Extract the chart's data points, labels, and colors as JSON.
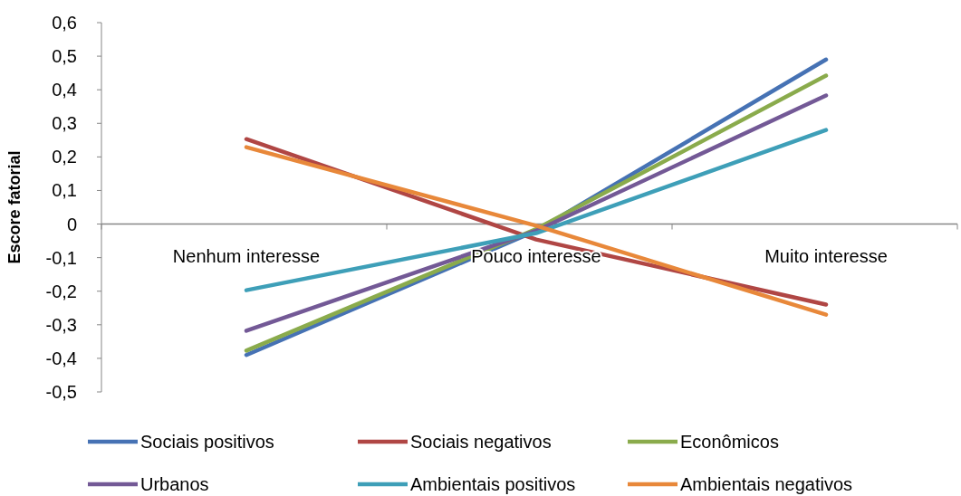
{
  "chart_data": {
    "type": "line",
    "ylabel": "Escore fatorial",
    "categories": [
      "Nenhum interesse",
      "Pouco interesse",
      "Muito interesse"
    ],
    "ylim": [
      -0.5,
      0.6
    ],
    "yticks": [
      {
        "value": -0.5,
        "label": "-0,5"
      },
      {
        "value": -0.4,
        "label": "-0,4"
      },
      {
        "value": -0.3,
        "label": "-0,3"
      },
      {
        "value": -0.2,
        "label": "-0,2"
      },
      {
        "value": -0.1,
        "label": "-0,1"
      },
      {
        "value": 0,
        "label": "0"
      },
      {
        "value": 0.1,
        "label": "0,1"
      },
      {
        "value": 0.2,
        "label": "0,2"
      },
      {
        "value": 0.3,
        "label": "0,3"
      },
      {
        "value": 0.4,
        "label": "0,4"
      },
      {
        "value": 0.5,
        "label": "0,5"
      },
      {
        "value": 0.6,
        "label": "0,6"
      }
    ],
    "grid": false,
    "legend": "bottom",
    "marker": "none",
    "line_style": "solid",
    "series": [
      {
        "name": "Sociais positivos",
        "color": "#4672b4",
        "values": [
          -0.39,
          -0.02,
          0.49
        ]
      },
      {
        "name": "Sociais negativos",
        "color": "#b04644",
        "values": [
          0.253,
          -0.046,
          -0.24
        ]
      },
      {
        "name": "Econômicos",
        "color": "#8aab4c",
        "values": [
          -0.377,
          -0.015,
          0.442
        ]
      },
      {
        "name": "Urbanos",
        "color": "#735996",
        "values": [
          -0.318,
          -0.02,
          0.383
        ]
      },
      {
        "name": "Ambientais positivos",
        "color": "#3e9fb8",
        "values": [
          -0.197,
          -0.027,
          0.28
        ]
      },
      {
        "name": "Ambientais negativos",
        "color": "#e8883a",
        "values": [
          0.229,
          -0.005,
          -0.27
        ]
      }
    ]
  }
}
